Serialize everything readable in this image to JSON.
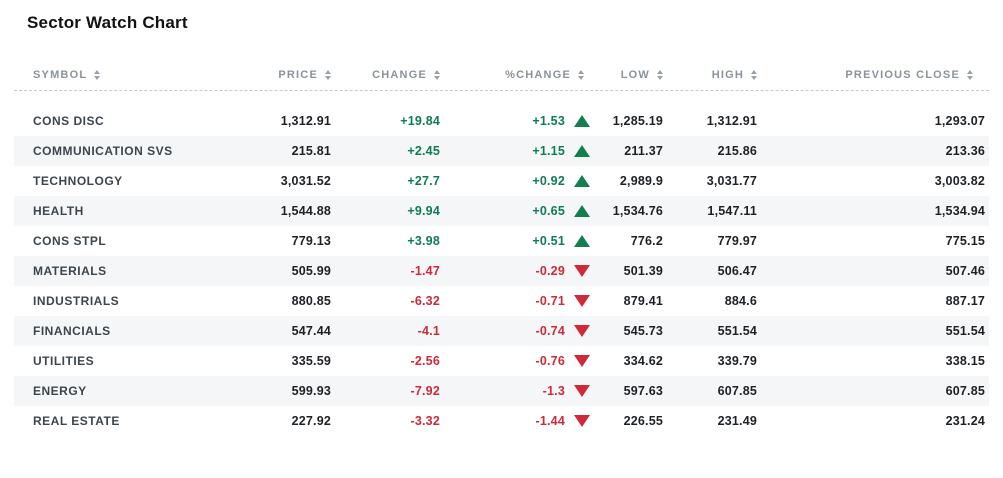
{
  "title": "Sector Watch Chart",
  "colors": {
    "positive": "#0e7d52",
    "negative": "#ce2a3a",
    "header_text": "#8a939c",
    "row_stripe": "#f5f6f7"
  },
  "icons": {
    "sort": "up-down-triangles",
    "up": "filled-up-triangle",
    "down": "filled-down-triangle"
  },
  "table": {
    "columns": [
      {
        "key": "symbol",
        "label": "SYMBOL",
        "align": "left"
      },
      {
        "key": "price",
        "label": "PRICE",
        "align": "right"
      },
      {
        "key": "change",
        "label": "CHANGE",
        "align": "right"
      },
      {
        "key": "pct_change",
        "label": "%CHANGE",
        "align": "right"
      },
      {
        "key": "low",
        "label": "LOW",
        "align": "right"
      },
      {
        "key": "high",
        "label": "HIGH",
        "align": "right"
      },
      {
        "key": "prev_close",
        "label": "PREVIOUS CLOSE",
        "align": "right"
      }
    ],
    "rows": [
      {
        "symbol": "CONS DISC",
        "price": "1,312.91",
        "change": "+19.84",
        "pct_change": "+1.53",
        "direction": "up",
        "low": "1,285.19",
        "high": "1,312.91",
        "prev_close": "1,293.07"
      },
      {
        "symbol": "COMMUNICATION SVS",
        "price": "215.81",
        "change": "+2.45",
        "pct_change": "+1.15",
        "direction": "up",
        "low": "211.37",
        "high": "215.86",
        "prev_close": "213.36"
      },
      {
        "symbol": "TECHNOLOGY",
        "price": "3,031.52",
        "change": "+27.7",
        "pct_change": "+0.92",
        "direction": "up",
        "low": "2,989.9",
        "high": "3,031.77",
        "prev_close": "3,003.82"
      },
      {
        "symbol": "HEALTH",
        "price": "1,544.88",
        "change": "+9.94",
        "pct_change": "+0.65",
        "direction": "up",
        "low": "1,534.76",
        "high": "1,547.11",
        "prev_close": "1,534.94"
      },
      {
        "symbol": "CONS STPL",
        "price": "779.13",
        "change": "+3.98",
        "pct_change": "+0.51",
        "direction": "up",
        "low": "776.2",
        "high": "779.97",
        "prev_close": "775.15"
      },
      {
        "symbol": "MATERIALS",
        "price": "505.99",
        "change": "-1.47",
        "pct_change": "-0.29",
        "direction": "down",
        "low": "501.39",
        "high": "506.47",
        "prev_close": "507.46"
      },
      {
        "symbol": "INDUSTRIALS",
        "price": "880.85",
        "change": "-6.32",
        "pct_change": "-0.71",
        "direction": "down",
        "low": "879.41",
        "high": "884.6",
        "prev_close": "887.17"
      },
      {
        "symbol": "FINANCIALS",
        "price": "547.44",
        "change": "-4.1",
        "pct_change": "-0.74",
        "direction": "down",
        "low": "545.73",
        "high": "551.54",
        "prev_close": "551.54"
      },
      {
        "symbol": "UTILITIES",
        "price": "335.59",
        "change": "-2.56",
        "pct_change": "-0.76",
        "direction": "down",
        "low": "334.62",
        "high": "339.79",
        "prev_close": "338.15"
      },
      {
        "symbol": "ENERGY",
        "price": "599.93",
        "change": "-7.92",
        "pct_change": "-1.3",
        "direction": "down",
        "low": "597.63",
        "high": "607.85",
        "prev_close": "607.85"
      },
      {
        "symbol": "REAL ESTATE",
        "price": "227.92",
        "change": "-3.32",
        "pct_change": "-1.44",
        "direction": "down",
        "low": "226.55",
        "high": "231.49",
        "prev_close": "231.24"
      }
    ]
  }
}
